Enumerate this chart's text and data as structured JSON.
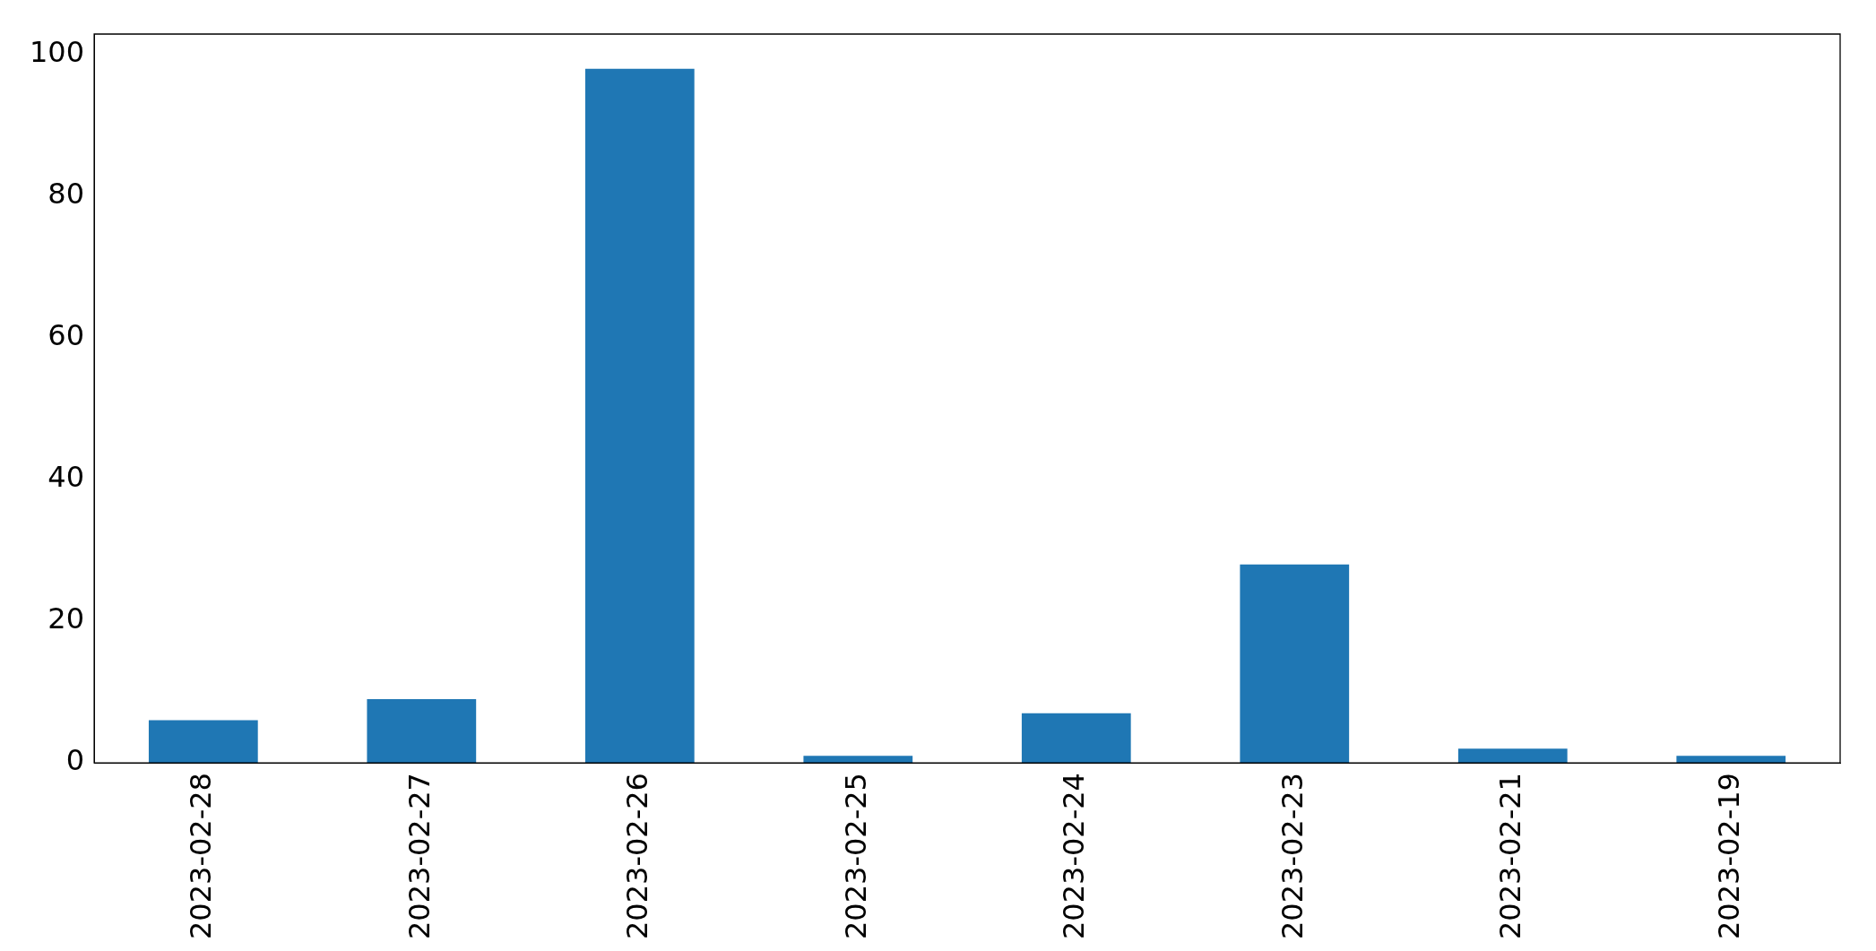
{
  "chart_data": {
    "type": "bar",
    "categories": [
      "2023-02-28",
      "2023-02-27",
      "2023-02-26",
      "2023-02-25",
      "2023-02-24",
      "2023-02-23",
      "2023-02-21",
      "2023-02-19"
    ],
    "values": [
      6,
      9,
      98,
      1,
      7,
      28,
      2,
      1
    ],
    "color": "#1f77b4",
    "ylim": [
      0,
      102.9
    ],
    "yticks": [
      0,
      20,
      40,
      60,
      80,
      100
    ],
    "grid": false,
    "legend": false
  }
}
